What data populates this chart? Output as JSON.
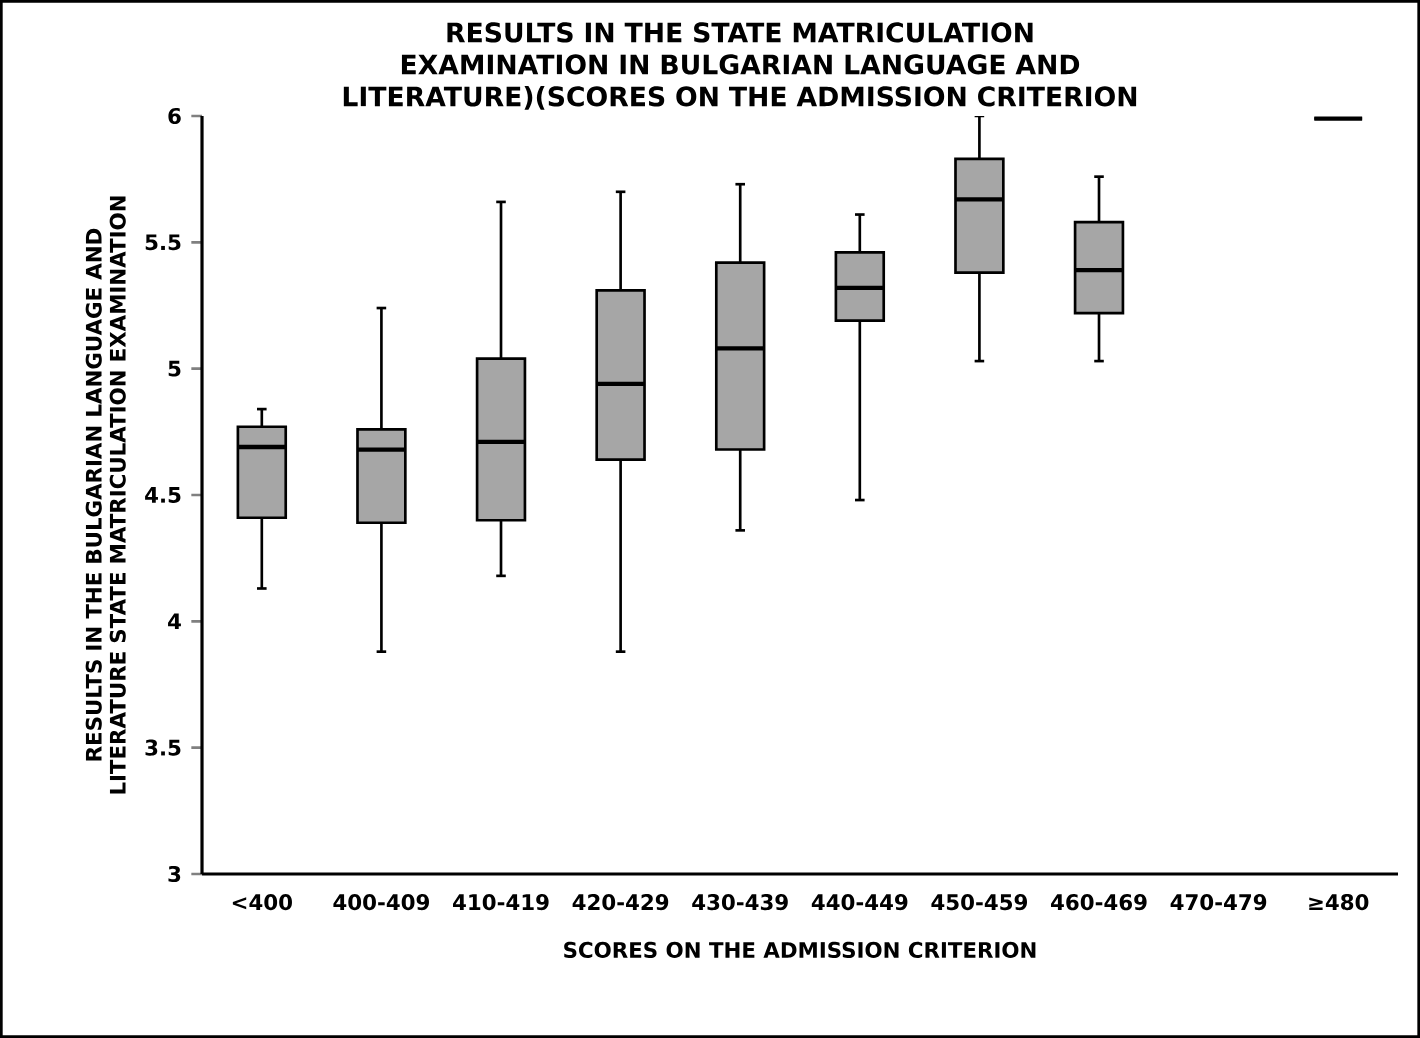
{
  "chart_data": {
    "type": "box",
    "title": "RESULTS IN THE STATE MATRICULATION EXAMINATION IN BULGARIAN LANGUAGE AND LITERATURE)(SCORES ON THE ADMISSION CRITERION",
    "xlabel": "SCORES ON THE ADMISSION CRITERION",
    "ylabel": "RESULTS IN THE BULGARIAN LANGUAGE AND LITERATURE STATE MATRICULATION EXAMINATION",
    "categories": [
      "<400",
      "400-409",
      "410-419",
      "420-429",
      "430-439",
      "440-449",
      "450-459",
      "460-469",
      "470-479",
      "≥480"
    ],
    "colors": [
      "#a6a6a6",
      "#a6a6a6",
      "#a6a6a6",
      "#a6a6a6",
      "#a6a6a6",
      "#a6a6a6",
      "#a6a6a6",
      "#a6a6a6",
      "#a6a6a6",
      "#000000"
    ],
    "ylim": [
      3,
      6
    ],
    "yticks": [
      3,
      3.5,
      4,
      4.5,
      5,
      5.5,
      6
    ],
    "boxes": [
      {
        "low": 4.13,
        "q1": 4.41,
        "median": 4.69,
        "q3": 4.77,
        "high": 4.84
      },
      {
        "low": 3.88,
        "q1": 4.39,
        "median": 4.68,
        "q3": 4.76,
        "high": 5.24
      },
      {
        "low": 4.18,
        "q1": 4.4,
        "median": 4.71,
        "q3": 5.04,
        "high": 5.66
      },
      {
        "low": 3.88,
        "q1": 4.64,
        "median": 4.94,
        "q3": 5.31,
        "high": 5.7
      },
      {
        "low": 4.36,
        "q1": 4.68,
        "median": 5.08,
        "q3": 5.42,
        "high": 5.73
      },
      {
        "low": 4.48,
        "q1": 5.19,
        "median": 5.32,
        "q3": 5.46,
        "high": 5.61
      },
      {
        "low": 5.03,
        "q1": 5.38,
        "median": 5.67,
        "q3": 5.83,
        "high": 6
      },
      {
        "low": 5.03,
        "q1": 5.22,
        "median": 5.39,
        "q3": 5.58,
        "high": 5.76
      },
      null,
      {
        "low": 5.99,
        "q1": 5.99,
        "median": 5.99,
        "q3": 5.99,
        "high": 5.99
      }
    ]
  }
}
